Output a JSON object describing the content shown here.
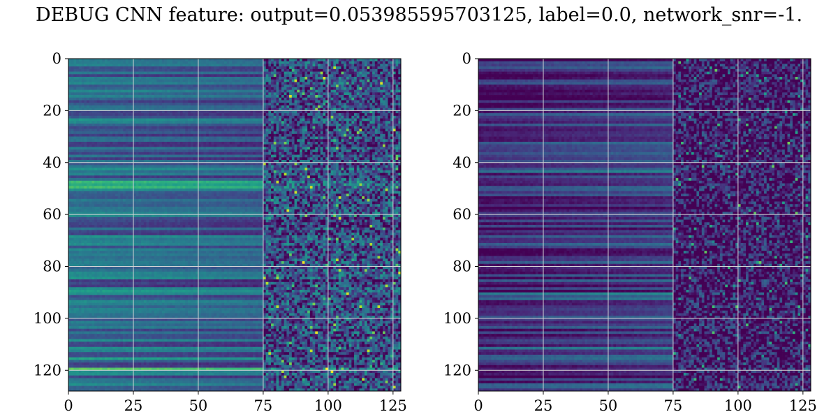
{
  "figure": {
    "title": "DEBUG CNN feature: output=0.053985595703125, label=0.0, network_snr=-1."
  },
  "chart_data": [
    {
      "type": "heatmap",
      "colormap": "viridis",
      "rows": 128,
      "cols": 128,
      "xlim": [
        0,
        128
      ],
      "ylim": [
        128,
        0
      ],
      "xticks": [
        0,
        25,
        50,
        75,
        100,
        125
      ],
      "yticks": [
        0,
        20,
        40,
        60,
        80,
        100,
        120
      ],
      "xtick_labels": [
        "0",
        "25",
        "50",
        "75",
        "100",
        "125"
      ],
      "ytick_labels": [
        "0",
        "20",
        "40",
        "60",
        "80",
        "100",
        "120"
      ],
      "grid": true,
      "pattern": {
        "left_region_cols": [
          0,
          75
        ],
        "right_region_cols": [
          75,
          128
        ],
        "left_mean_level": 0.35,
        "right_mean_level": 0.3,
        "right_noise_level": 0.28
      }
    },
    {
      "type": "heatmap",
      "colormap": "viridis",
      "rows": 128,
      "cols": 128,
      "xlim": [
        0,
        128
      ],
      "ylim": [
        128,
        0
      ],
      "xticks": [
        0,
        25,
        50,
        75,
        100,
        125
      ],
      "yticks": [
        0,
        20,
        40,
        60,
        80,
        100,
        120
      ],
      "xtick_labels": [
        "0",
        "25",
        "50",
        "75",
        "100",
        "125"
      ],
      "ytick_labels": [
        "0",
        "20",
        "40",
        "60",
        "80",
        "100",
        "120"
      ],
      "grid": true,
      "pattern": {
        "left_region_cols": [
          0,
          75
        ],
        "right_region_cols": [
          75,
          128
        ],
        "left_mean_level": 0.12,
        "right_mean_level": 0.12,
        "right_noise_level": 0.26
      }
    }
  ]
}
